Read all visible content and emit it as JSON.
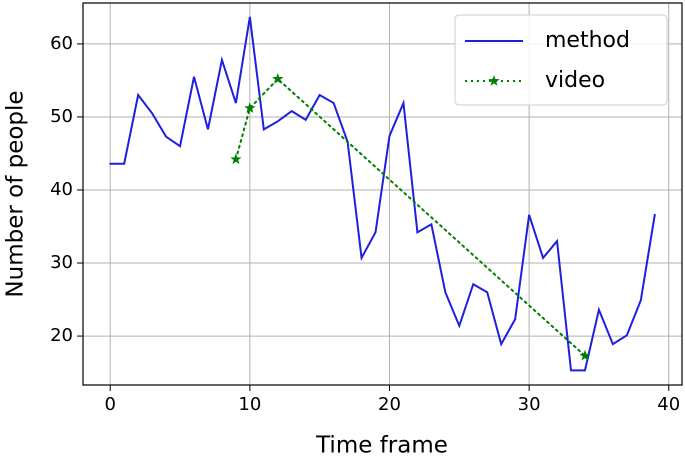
{
  "chart_data": {
    "type": "line",
    "xlabel": "Time frame",
    "ylabel": "Number of people",
    "xlim": [
      -1.95,
      40.95
    ],
    "xticks": [
      0,
      10,
      20,
      30,
      40
    ],
    "ylim": [
      13.3,
      65.6
    ],
    "yticks": [
      20,
      30,
      40,
      50,
      60
    ],
    "grid": true,
    "legend": "upper right",
    "series": [
      {
        "name": "method",
        "color": "#1f1fe0",
        "linestyle": "solid",
        "marker": null,
        "x": [
          0,
          1,
          2,
          3,
          4,
          5,
          6,
          7,
          8,
          9,
          10,
          11,
          12,
          13,
          14,
          15,
          16,
          17,
          18,
          19,
          20,
          21,
          22,
          23,
          24,
          25,
          26,
          27,
          28,
          29,
          30,
          31,
          32,
          33,
          34,
          35,
          36,
          37,
          38,
          39
        ],
        "values": [
          43.6,
          43.6,
          53.0,
          50.5,
          47.3,
          46.0,
          55.5,
          48.3,
          57.8,
          51.9,
          63.7,
          48.3,
          49.4,
          50.8,
          49.6,
          53.0,
          51.9,
          46.6,
          30.7,
          34.2,
          47.4,
          51.9,
          34.2,
          35.3,
          26.0,
          21.4,
          27.1,
          26.0,
          18.9,
          22.3,
          36.6,
          30.7,
          33.0,
          15.3,
          15.3,
          23.6,
          18.9,
          20.1,
          24.9,
          36.6
        ]
      },
      {
        "name": "video",
        "color": "#008000",
        "linestyle": "dotted",
        "marker": "star",
        "x": [
          9,
          10,
          12,
          34
        ],
        "values": [
          44.2,
          51.2,
          55.2,
          17.3
        ]
      }
    ]
  }
}
